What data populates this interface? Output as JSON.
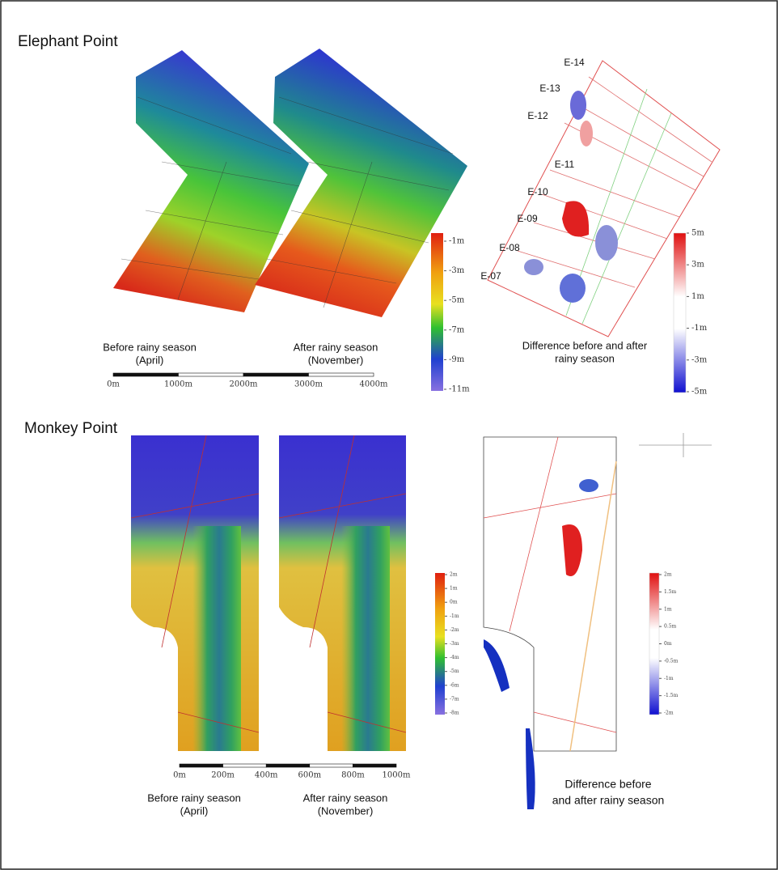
{
  "elephant_point": {
    "title": "Elephant Point",
    "before_caption": [
      "Before rainy season",
      "(April)"
    ],
    "after_caption": [
      "After rainy season",
      "(November)"
    ],
    "depth_scale": [
      "-1m",
      "-3m",
      "-5m",
      "-7m",
      "-9m",
      "-11m"
    ],
    "distance_scale": [
      "0m",
      "1000m",
      "2000m",
      "3000m",
      "4000m"
    ],
    "profiles": [
      "E-14",
      "E-13",
      "E-12",
      "E-11",
      "E-10",
      "E-09",
      "E-08",
      "E-07"
    ],
    "difference_caption": [
      "Difference before and after",
      "rainy season"
    ],
    "difference_scale": [
      "5m",
      "3m",
      "1m",
      "-1m",
      "-3m",
      "-5m"
    ]
  },
  "monkey_point": {
    "title": "Monkey Point",
    "before_caption": [
      "Before rainy season",
      "(April)"
    ],
    "after_caption": [
      "After rainy season",
      "(November)"
    ],
    "depth_scale": [
      "2m",
      "1m",
      "0m",
      "-1m",
      "-2m",
      "-3m",
      "-4m",
      "-5m",
      "-6m",
      "-7m",
      "-8m"
    ],
    "distance_scale": [
      "0m",
      "200m",
      "400m",
      "600m",
      "800m",
      "1000m"
    ],
    "difference_caption": [
      "Difference before",
      "and after rainy season"
    ],
    "difference_scale": [
      "2m",
      "1.5m",
      "1m",
      "0.5m",
      "0m",
      "-0.5m",
      "-1m",
      "-1.5m",
      "-2m"
    ]
  }
}
